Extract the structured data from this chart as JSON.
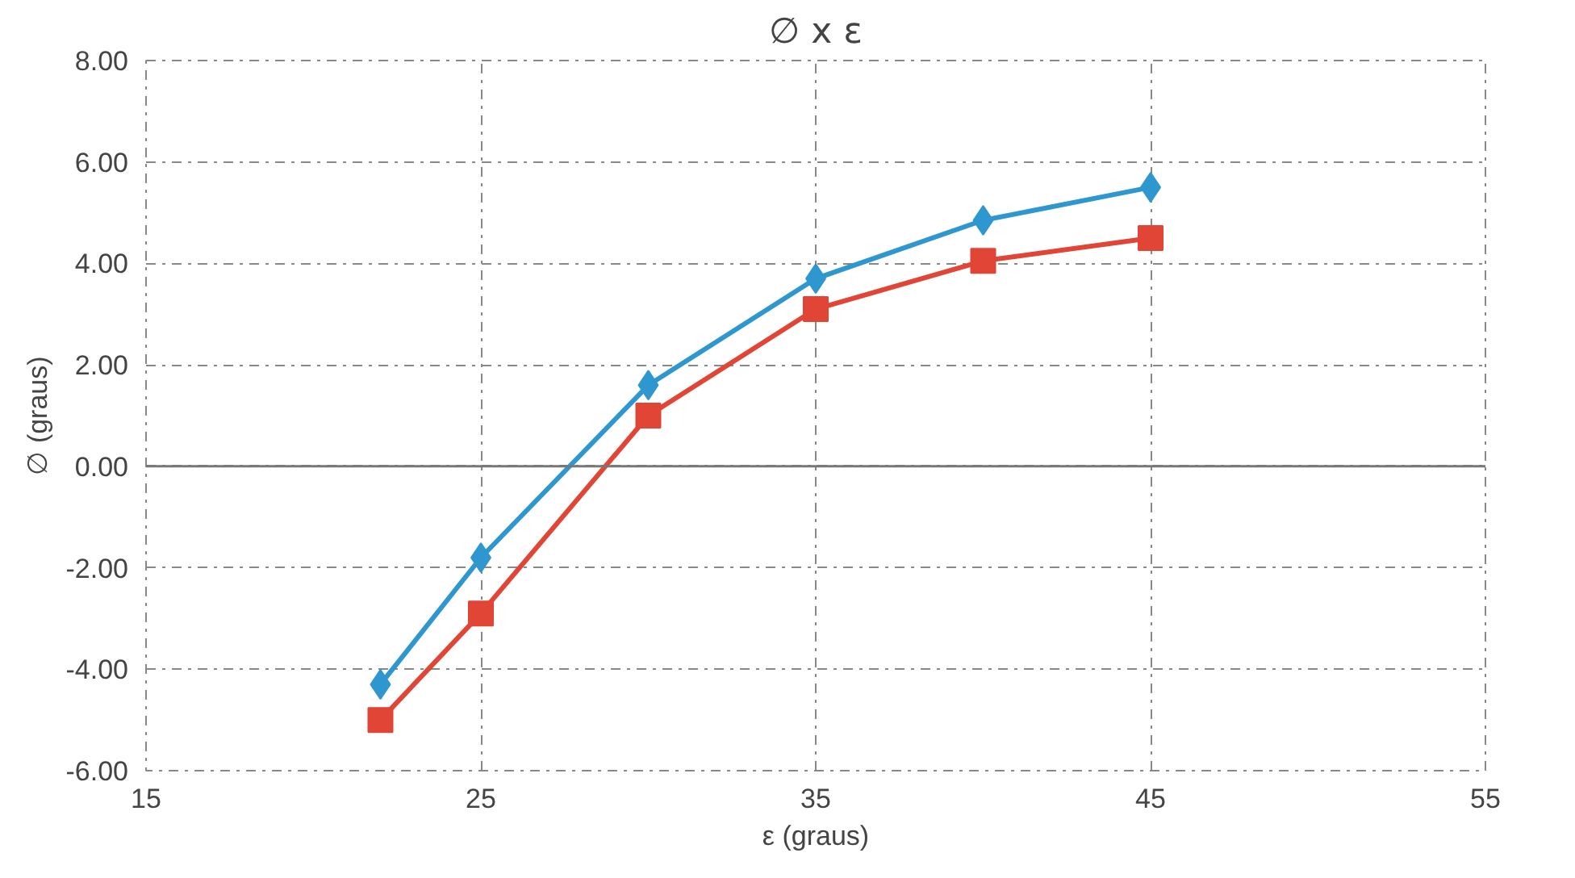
{
  "chart_data": {
    "type": "line",
    "title": "∅ x ε",
    "xlabel": "ε (graus)",
    "ylabel": "∅ (graus)",
    "x": [
      22,
      25,
      30,
      35,
      40,
      45
    ],
    "series": [
      {
        "color": "#2e97d0",
        "marker": "diamond",
        "values": [
          -4.3,
          -1.8,
          1.6,
          3.7,
          4.85,
          5.5
        ]
      },
      {
        "color": "#e04535",
        "marker": "square",
        "values": [
          -5.0,
          -2.9,
          1.0,
          3.1,
          4.05,
          4.5
        ]
      }
    ],
    "xlim": [
      15,
      55
    ],
    "xticks": [
      15,
      25,
      35,
      45,
      55
    ],
    "ylim": [
      -6,
      8
    ],
    "yticks": [
      {
        "value": -6,
        "label": "-6.00"
      },
      {
        "value": -4,
        "label": "-4.00"
      },
      {
        "value": -2,
        "label": "-2.00"
      },
      {
        "value": 0,
        "label": "0.00"
      },
      {
        "value": 2,
        "label": "2.00"
      },
      {
        "value": 4,
        "label": "4.00"
      },
      {
        "value": 6,
        "label": "6.00"
      },
      {
        "value": 8,
        "label": "8.00"
      }
    ],
    "grid": true,
    "line_style": "solid"
  }
}
